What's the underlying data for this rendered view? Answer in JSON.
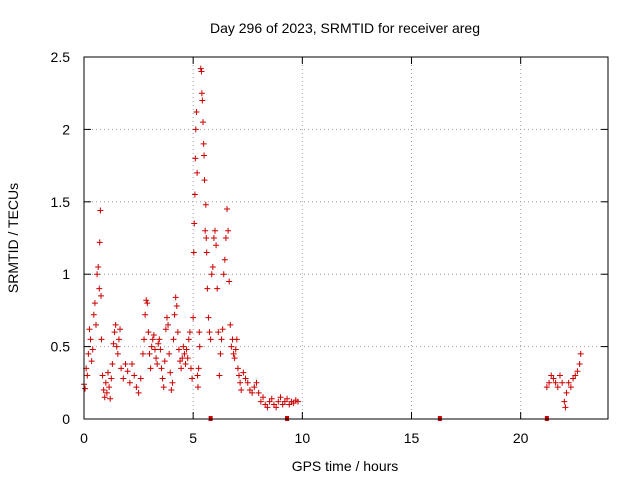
{
  "chart_data": {
    "type": "scatter",
    "title": "Day 296 of 2023, SRMTID for receiver areg",
    "xlabel": "GPS time / hours",
    "ylabel": "SRMTID / TECUs",
    "xlim": [
      0,
      24
    ],
    "ylim": [
      0,
      2.5
    ],
    "xticks": [
      0,
      5,
      10,
      15,
      20
    ],
    "xtick_labels": [
      "0",
      "5",
      "10",
      "15",
      "20"
    ],
    "yticks": [
      0,
      0.5,
      1,
      1.5,
      2,
      2.5
    ],
    "ytick_labels": [
      "0",
      "0.5",
      "1",
      "1.5",
      "2",
      "2.5"
    ],
    "grid": true,
    "marker": "plus",
    "color": "#cc0000",
    "series": [
      {
        "name": "SRMTID",
        "points": [
          [
            0.0,
            0.24
          ],
          [
            0.05,
            0.21
          ],
          [
            0.1,
            0.35
          ],
          [
            0.15,
            0.3
          ],
          [
            0.2,
            0.45
          ],
          [
            0.25,
            0.62
          ],
          [
            0.3,
            0.55
          ],
          [
            0.35,
            0.4
          ],
          [
            0.4,
            0.48
          ],
          [
            0.45,
            0.72
          ],
          [
            0.5,
            0.8
          ],
          [
            0.55,
            0.65
          ],
          [
            0.6,
            1.0
          ],
          [
            0.65,
            1.05
          ],
          [
            0.7,
            0.9
          ],
          [
            0.72,
            1.22
          ],
          [
            0.75,
            1.44
          ],
          [
            0.78,
            0.85
          ],
          [
            0.8,
            0.55
          ],
          [
            0.85,
            0.3
          ],
          [
            0.9,
            0.2
          ],
          [
            0.95,
            0.15
          ],
          [
            1.0,
            0.25
          ],
          [
            1.05,
            0.18
          ],
          [
            1.1,
            0.32
          ],
          [
            1.15,
            0.22
          ],
          [
            1.2,
            0.14
          ],
          [
            1.25,
            0.28
          ],
          [
            1.3,
            0.38
          ],
          [
            1.35,
            0.52
          ],
          [
            1.4,
            0.6
          ],
          [
            1.45,
            0.65
          ],
          [
            1.5,
            0.5
          ],
          [
            1.55,
            0.45
          ],
          [
            1.6,
            0.55
          ],
          [
            1.65,
            0.62
          ],
          [
            1.7,
            0.35
          ],
          [
            1.8,
            0.28
          ],
          [
            1.9,
            0.38
          ],
          [
            2.0,
            0.33
          ],
          [
            2.1,
            0.25
          ],
          [
            2.2,
            0.38
          ],
          [
            2.3,
            0.3
          ],
          [
            2.4,
            0.22
          ],
          [
            2.5,
            0.18
          ],
          [
            2.6,
            0.28
          ],
          [
            2.7,
            0.45
          ],
          [
            2.75,
            0.55
          ],
          [
            2.8,
            0.72
          ],
          [
            2.85,
            0.82
          ],
          [
            2.9,
            0.8
          ],
          [
            2.95,
            0.6
          ],
          [
            3.0,
            0.45
          ],
          [
            3.05,
            0.35
          ],
          [
            3.1,
            0.5
          ],
          [
            3.15,
            0.55
          ],
          [
            3.2,
            0.58
          ],
          [
            3.25,
            0.48
          ],
          [
            3.3,
            0.42
          ],
          [
            3.35,
            0.38
          ],
          [
            3.4,
            0.52
          ],
          [
            3.45,
            0.55
          ],
          [
            3.5,
            0.48
          ],
          [
            3.55,
            0.35
          ],
          [
            3.6,
            0.28
          ],
          [
            3.65,
            0.22
          ],
          [
            3.7,
            0.4
          ],
          [
            3.75,
            0.62
          ],
          [
            3.8,
            0.7
          ],
          [
            3.85,
            0.65
          ],
          [
            3.9,
            0.45
          ],
          [
            3.95,
            0.32
          ],
          [
            4.0,
            0.2
          ],
          [
            4.05,
            0.25
          ],
          [
            4.1,
            0.55
          ],
          [
            4.15,
            0.72
          ],
          [
            4.2,
            0.84
          ],
          [
            4.25,
            0.78
          ],
          [
            4.3,
            0.6
          ],
          [
            4.35,
            0.48
          ],
          [
            4.4,
            0.4
          ],
          [
            4.45,
            0.35
          ],
          [
            4.5,
            0.42
          ],
          [
            4.55,
            0.5
          ],
          [
            4.6,
            0.45
          ],
          [
            4.65,
            0.38
          ],
          [
            4.7,
            0.48
          ],
          [
            4.75,
            0.42
          ],
          [
            4.8,
            0.55
          ],
          [
            4.85,
            0.6
          ],
          [
            4.9,
            0.35
          ],
          [
            4.95,
            0.28
          ],
          [
            5.0,
            0.7
          ],
          [
            5.03,
            1.15
          ],
          [
            5.05,
            1.35
          ],
          [
            5.08,
            1.55
          ],
          [
            5.1,
            1.8
          ],
          [
            5.12,
            2.0
          ],
          [
            5.15,
            2.12
          ],
          [
            5.18,
            1.7
          ],
          [
            5.2,
            0.3
          ],
          [
            5.22,
            0.22
          ],
          [
            5.25,
            0.35
          ],
          [
            5.28,
            0.6
          ],
          [
            5.3,
            0.5
          ],
          [
            5.35,
            2.42
          ],
          [
            5.38,
            2.4
          ],
          [
            5.4,
            2.25
          ],
          [
            5.42,
            2.2
          ],
          [
            5.45,
            2.05
          ],
          [
            5.48,
            1.9
          ],
          [
            5.5,
            1.82
          ],
          [
            5.52,
            1.65
          ],
          [
            5.55,
            1.3
          ],
          [
            5.58,
            1.48
          ],
          [
            5.6,
            1.25
          ],
          [
            5.62,
            1.15
          ],
          [
            5.65,
            0.9
          ],
          [
            5.7,
            0.7
          ],
          [
            5.75,
            0.6
          ],
          [
            5.8,
            0.55
          ],
          [
            5.85,
            1.0
          ],
          [
            5.9,
            1.05
          ],
          [
            5.95,
            1.25
          ],
          [
            6.0,
            1.3
          ],
          [
            6.05,
            1.2
          ],
          [
            6.1,
            0.9
          ],
          [
            6.15,
            0.6
          ],
          [
            6.2,
            0.3
          ],
          [
            6.25,
            0.45
          ],
          [
            6.3,
            0.55
          ],
          [
            6.35,
            0.62
          ],
          [
            6.4,
            1.0
          ],
          [
            6.45,
            1.1
          ],
          [
            6.5,
            1.25
          ],
          [
            6.55,
            1.45
          ],
          [
            6.6,
            1.3
          ],
          [
            6.65,
            0.95
          ],
          [
            6.7,
            0.65
          ],
          [
            6.75,
            0.5
          ],
          [
            6.8,
            0.55
          ],
          [
            6.85,
            0.45
          ],
          [
            6.9,
            0.42
          ],
          [
            6.95,
            0.48
          ],
          [
            7.0,
            0.55
          ],
          [
            7.05,
            0.35
          ],
          [
            7.1,
            0.3
          ],
          [
            7.15,
            0.25
          ],
          [
            7.2,
            0.2
          ],
          [
            7.3,
            0.32
          ],
          [
            7.4,
            0.28
          ],
          [
            7.5,
            0.25
          ],
          [
            7.6,
            0.2
          ],
          [
            7.7,
            0.18
          ],
          [
            7.8,
            0.22
          ],
          [
            7.9,
            0.25
          ],
          [
            8.0,
            0.18
          ],
          [
            8.1,
            0.12
          ],
          [
            8.2,
            0.15
          ],
          [
            8.3,
            0.1
          ],
          [
            8.4,
            0.08
          ],
          [
            8.5,
            0.12
          ],
          [
            8.6,
            0.14
          ],
          [
            8.7,
            0.1
          ],
          [
            8.8,
            0.08
          ],
          [
            8.9,
            0.12
          ],
          [
            9.0,
            0.15
          ],
          [
            9.1,
            0.1
          ],
          [
            9.2,
            0.12
          ],
          [
            9.3,
            0.14
          ],
          [
            9.4,
            0.1
          ],
          [
            9.5,
            0.12
          ],
          [
            9.6,
            0.11
          ],
          [
            9.7,
            0.13
          ],
          [
            9.8,
            0.12
          ],
          [
            21.2,
            0.22
          ],
          [
            21.3,
            0.25
          ],
          [
            21.4,
            0.3
          ],
          [
            21.5,
            0.28
          ],
          [
            21.6,
            0.25
          ],
          [
            21.7,
            0.22
          ],
          [
            21.8,
            0.3
          ],
          [
            21.9,
            0.25
          ],
          [
            22.0,
            0.12
          ],
          [
            22.05,
            0.08
          ],
          [
            22.1,
            0.18
          ],
          [
            22.2,
            0.25
          ],
          [
            22.3,
            0.22
          ],
          [
            22.4,
            0.28
          ],
          [
            22.5,
            0.3
          ],
          [
            22.6,
            0.33
          ],
          [
            22.7,
            0.38
          ],
          [
            22.75,
            0.45
          ]
        ]
      }
    ],
    "baseline_markers": [
      5.8,
      9.3,
      16.3,
      21.2
    ]
  }
}
